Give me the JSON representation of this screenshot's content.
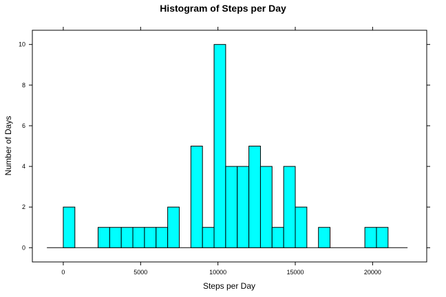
{
  "chart_data": {
    "type": "bar",
    "title": "Histogram of Steps per Day",
    "xlabel": "Steps per Day",
    "ylabel": "Number of Days",
    "xlim": [
      -2000,
      23500
    ],
    "ylim": [
      -0.7,
      10.7
    ],
    "x_ticks": [
      0,
      5000,
      10000,
      15000,
      20000
    ],
    "y_ticks": [
      0,
      2,
      4,
      6,
      8,
      10
    ],
    "baseline_range": [
      -1060,
      22260
    ],
    "bin_width": 750,
    "bins": [
      {
        "start": 0,
        "count": 2
      },
      {
        "start": 2250,
        "count": 1
      },
      {
        "start": 3000,
        "count": 1
      },
      {
        "start": 3750,
        "count": 1
      },
      {
        "start": 4500,
        "count": 1
      },
      {
        "start": 5250,
        "count": 1
      },
      {
        "start": 6000,
        "count": 1
      },
      {
        "start": 6750,
        "count": 2
      },
      {
        "start": 8250,
        "count": 5
      },
      {
        "start": 9000,
        "count": 1
      },
      {
        "start": 9750,
        "count": 10
      },
      {
        "start": 10500,
        "count": 4
      },
      {
        "start": 11250,
        "count": 4
      },
      {
        "start": 12000,
        "count": 5
      },
      {
        "start": 12750,
        "count": 4
      },
      {
        "start": 13500,
        "count": 1
      },
      {
        "start": 14250,
        "count": 4
      },
      {
        "start": 15000,
        "count": 2
      },
      {
        "start": 16500,
        "count": 1
      },
      {
        "start": 19500,
        "count": 1
      },
      {
        "start": 20250,
        "count": 1
      }
    ],
    "bar_color": "#00ffff",
    "grid": false,
    "legend": "none"
  }
}
